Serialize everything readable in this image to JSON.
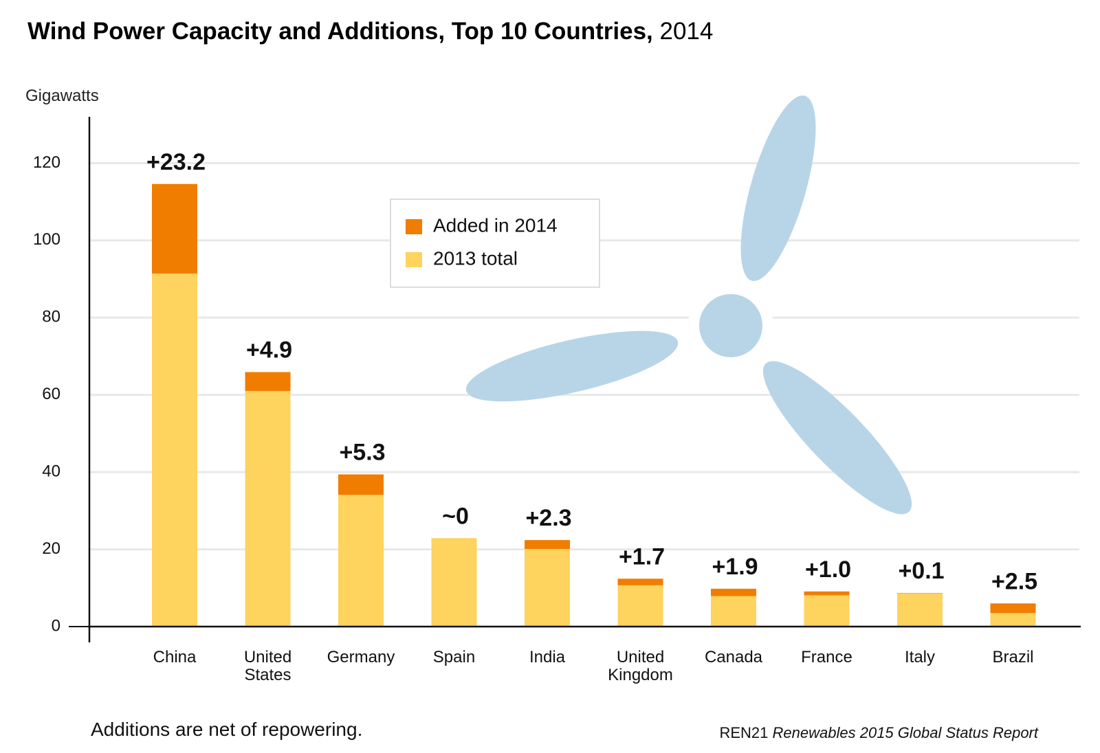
{
  "chart_data": {
    "type": "stacked_bar",
    "title": "Wind Power Capacity and Additions, Top 10 Countries,",
    "title_year": "2014",
    "y_label": "Gigawatts",
    "categories": [
      "China",
      "United States",
      "Germany",
      "Spain",
      "India",
      "United Kingdom",
      "Canada",
      "France",
      "Italy",
      "Brazil"
    ],
    "series": [
      {
        "name": "2013 total",
        "color": "#fed35e",
        "values": [
          91.4,
          61.0,
          34.1,
          22.9,
          20.1,
          10.7,
          7.9,
          8.1,
          8.6,
          3.5
        ]
      },
      {
        "name": "Added in 2014",
        "color": "#f07d00",
        "values": [
          23.2,
          4.9,
          5.3,
          0,
          2.3,
          1.7,
          1.9,
          1.0,
          0.1,
          2.5
        ],
        "value_labels": [
          "+23.2",
          "+4.9",
          "+5.3",
          "~0",
          "+2.3",
          "+1.7",
          "+1.9",
          "+1.0",
          "+0.1",
          "+2.5"
        ]
      }
    ],
    "ylim": [
      0,
      132
    ],
    "yticks": [
      0,
      20,
      40,
      60,
      80,
      100,
      120
    ],
    "grid": true,
    "note": "Additions are net of repowering.",
    "source": "REN21",
    "source_title": "Renewables 2015 Global Status Report"
  }
}
